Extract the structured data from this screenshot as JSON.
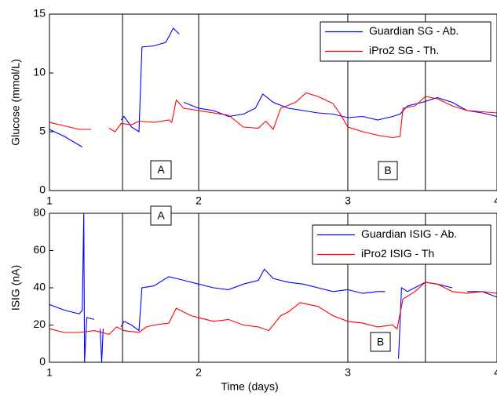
{
  "chart_data": [
    {
      "type": "line",
      "ylabel": "Glucose (mmol/L)",
      "xlim": [
        1,
        4
      ],
      "ylim": [
        0,
        15
      ],
      "xticks": [
        1,
        2,
        3,
        4
      ],
      "yticks": [
        0,
        5,
        10,
        15
      ],
      "vlines": [
        1.49,
        2,
        3,
        3.52
      ],
      "legend": "upper right",
      "annotations": [
        "A",
        "B"
      ],
      "series": [
        {
          "name": "Guardian SG - Ab.",
          "color": "#0000ff",
          "x": [
            1.0,
            1.1,
            1.22,
            1.3,
            1.48,
            1.5,
            1.55,
            1.6,
            1.62,
            1.7,
            1.78,
            1.83,
            1.87,
            1.88,
            1.9,
            2.0,
            2.1,
            2.2,
            2.3,
            2.38,
            2.43,
            2.5,
            2.6,
            2.7,
            2.8,
            2.9,
            3.0,
            3.1,
            3.2,
            3.3,
            3.35,
            3.4,
            3.5,
            3.6,
            3.7,
            3.8,
            3.9,
            4.0
          ],
          "values": [
            5.2,
            4.6,
            3.7,
            null,
            6.0,
            6.3,
            5.4,
            5.0,
            12.2,
            12.3,
            12.6,
            13.8,
            13.3,
            null,
            7.5,
            7.0,
            6.8,
            6.3,
            6.5,
            7.0,
            8.2,
            7.5,
            7.0,
            6.8,
            6.6,
            6.5,
            6.2,
            6.3,
            6.0,
            6.3,
            6.5,
            7.2,
            7.5,
            7.9,
            7.5,
            6.8,
            6.6,
            6.3
          ]
        },
        {
          "name": "iPro2 SG - Th.",
          "color": "#ff0000",
          "x": [
            1.0,
            1.1,
            1.2,
            1.28,
            1.3,
            1.32,
            1.35,
            1.4,
            1.44,
            1.48,
            1.55,
            1.6,
            1.7,
            1.8,
            1.82,
            1.85,
            1.9,
            2.0,
            2.1,
            2.2,
            2.3,
            2.4,
            2.45,
            2.5,
            2.55,
            2.65,
            2.72,
            2.8,
            2.9,
            2.95,
            3.0,
            3.1,
            3.2,
            3.3,
            3.35,
            3.37,
            3.45,
            3.52,
            3.6,
            3.7,
            3.8,
            3.9,
            4.0
          ],
          "values": [
            5.8,
            5.5,
            5.2,
            5.2,
            null,
            5.5,
            null,
            5.3,
            5.0,
            5.7,
            5.6,
            5.9,
            5.8,
            6.0,
            5.8,
            7.7,
            7.0,
            6.8,
            6.6,
            6.4,
            5.4,
            5.3,
            5.9,
            5.2,
            7.0,
            7.5,
            8.3,
            8.0,
            7.4,
            6.5,
            5.4,
            5.0,
            4.7,
            4.5,
            4.6,
            7.0,
            7.2,
            8.0,
            7.8,
            7.2,
            6.8,
            6.7,
            6.6
          ]
        }
      ]
    },
    {
      "type": "line",
      "ylabel": "ISIG (nA)",
      "xlabel": "Time (days)",
      "xlim": [
        1,
        4
      ],
      "ylim": [
        0,
        80
      ],
      "xticks": [
        1,
        2,
        3,
        4
      ],
      "yticks": [
        0,
        20,
        40,
        60,
        80
      ],
      "vlines": [
        1.49,
        2,
        3,
        3.52
      ],
      "legend": "upper right",
      "annotations": [
        "A",
        "B"
      ],
      "series": [
        {
          "name": "Guardian ISIG - Ab.",
          "color": "#0000ff",
          "x": [
            1.0,
            1.1,
            1.2,
            1.22,
            1.23,
            1.235,
            1.25,
            1.3,
            1.32,
            1.34,
            1.35,
            1.36,
            1.4,
            1.48,
            1.5,
            1.55,
            1.6,
            1.62,
            1.7,
            1.8,
            1.9,
            2.0,
            2.1,
            2.2,
            2.3,
            2.4,
            2.44,
            2.5,
            2.6,
            2.7,
            2.8,
            2.9,
            3.0,
            3.1,
            3.2,
            3.25,
            3.3,
            3.34,
            3.36,
            3.4,
            3.52,
            3.6,
            3.7,
            3.75,
            3.8,
            3.9,
            4.0
          ],
          "values": [
            31,
            28,
            26,
            28,
            80,
            0,
            24,
            23,
            null,
            18,
            0,
            18,
            null,
            19,
            22,
            20,
            17,
            40,
            41,
            46,
            44,
            42,
            40,
            39,
            42,
            44,
            50,
            45,
            43,
            42,
            40,
            38,
            39,
            37,
            38,
            38,
            null,
            2,
            40,
            38,
            43,
            42,
            40,
            null,
            38,
            38,
            35
          ]
        },
        {
          "name": "iPro2 ISIG - Th",
          "color": "#ff0000",
          "x": [
            1.0,
            1.1,
            1.2,
            1.3,
            1.4,
            1.45,
            1.5,
            1.6,
            1.65,
            1.7,
            1.8,
            1.85,
            1.95,
            2.0,
            2.1,
            2.2,
            2.3,
            2.4,
            2.47,
            2.55,
            2.6,
            2.68,
            2.8,
            2.9,
            3.0,
            3.1,
            3.2,
            3.3,
            3.33,
            3.37,
            3.45,
            3.52,
            3.6,
            3.7,
            3.8,
            3.9,
            4.0
          ],
          "values": [
            18,
            16,
            16,
            17,
            15,
            19,
            17,
            16,
            19,
            20,
            21,
            29,
            25,
            24,
            22,
            23,
            20,
            19,
            17,
            25,
            27,
            32,
            30,
            25,
            22,
            21,
            19,
            20,
            18,
            34,
            38,
            43,
            42,
            38,
            37,
            38,
            37
          ]
        }
      ]
    }
  ]
}
